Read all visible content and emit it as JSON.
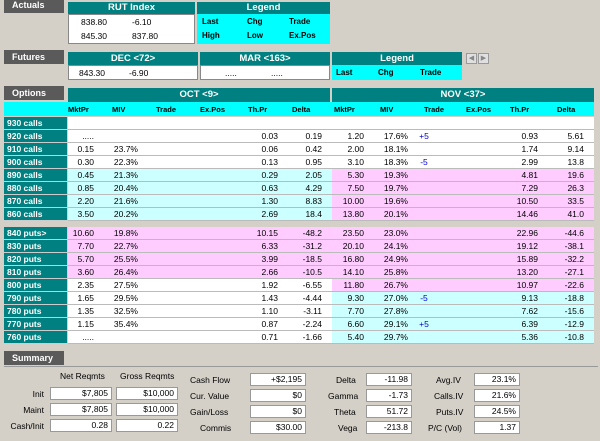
{
  "actuals": {
    "section_label": "Actuals",
    "index_title": "RUT Index",
    "row1": [
      "838.80",
      "-6.10"
    ],
    "row2": [
      "845.30",
      "837.80"
    ],
    "legend_title": "Legend",
    "legend_row1": [
      "Last",
      "Chg",
      "Trade"
    ],
    "legend_row2": [
      "High",
      "Low",
      "Ex.Pos"
    ]
  },
  "futures": {
    "section_label": "Futures",
    "dec_title": "DEC <72>",
    "dec_values": [
      "843.30",
      "-6.90"
    ],
    "mar_title": "MAR <163>",
    "mar_values": [
      ".....",
      "....."
    ],
    "legend_title": "Legend",
    "legend_row": [
      "Last",
      "Chg",
      "Trade"
    ],
    "nav_left": "◀",
    "nav_right": "▶"
  },
  "options": {
    "section_label": "Options",
    "oct_title": "OCT <9>",
    "nov_title": "NOV <37>",
    "columns": [
      "MktPr",
      "MIV",
      "Trade",
      "Ex.Pos",
      "Th.Pr",
      "Delta"
    ],
    "calls": [
      {
        "label": "930 calls",
        "oct": [
          "",
          "",
          "",
          "",
          "",
          ""
        ],
        "nov": [
          "",
          "",
          "",
          "",
          "",
          ""
        ]
      },
      {
        "label": "920 calls",
        "oct": [
          ".....",
          "",
          "",
          "",
          "0.03",
          "0.19"
        ],
        "nov": [
          "1.20",
          "17.6%",
          "+5",
          "",
          "0.93",
          "5.61"
        ]
      },
      {
        "label": "910 calls",
        "oct": [
          "0.15",
          "23.7%",
          "",
          "",
          "0.06",
          "0.42"
        ],
        "nov": [
          "2.00",
          "18.1%",
          "",
          "",
          "1.74",
          "9.14"
        ]
      },
      {
        "label": "900 calls",
        "oct": [
          "0.30",
          "22.3%",
          "",
          "",
          "0.13",
          "0.95"
        ],
        "nov": [
          "3.10",
          "18.3%",
          "-5",
          "",
          "2.99",
          "13.8"
        ]
      },
      {
        "label": "890 calls",
        "oct": [
          "0.45",
          "21.3%",
          "",
          "",
          "0.29",
          "2.05"
        ],
        "nov": [
          "5.30",
          "19.3%",
          "",
          "",
          "4.81",
          "19.6"
        ]
      },
      {
        "label": "880 calls",
        "oct": [
          "0.85",
          "20.4%",
          "",
          "",
          "0.63",
          "4.29"
        ],
        "nov": [
          "7.50",
          "19.7%",
          "",
          "",
          "7.29",
          "26.3"
        ]
      },
      {
        "label": "870 calls",
        "oct": [
          "2.20",
          "21.6%",
          "",
          "",
          "1.30",
          "8.83"
        ],
        "nov": [
          "10.00",
          "19.6%",
          "",
          "",
          "10.50",
          "33.5"
        ]
      },
      {
        "label": "860 calls",
        "oct": [
          "3.50",
          "20.2%",
          "",
          "",
          "2.69",
          "18.4"
        ],
        "nov": [
          "13.80",
          "20.1%",
          "",
          "",
          "14.46",
          "41.0"
        ]
      }
    ],
    "puts": [
      {
        "label": "840 puts>",
        "oct": [
          "10.60",
          "19.8%",
          "",
          "",
          "10.15",
          "-48.2"
        ],
        "nov": [
          "23.50",
          "23.0%",
          "",
          "",
          "22.96",
          "-44.6"
        ]
      },
      {
        "label": "830 puts",
        "oct": [
          "7.70",
          "22.7%",
          "",
          "",
          "6.33",
          "-31.2"
        ],
        "nov": [
          "20.10",
          "24.1%",
          "",
          "",
          "19.12",
          "-38.1"
        ]
      },
      {
        "label": "820 puts",
        "oct": [
          "5.70",
          "25.5%",
          "",
          "",
          "3.99",
          "-18.5"
        ],
        "nov": [
          "16.80",
          "24.9%",
          "",
          "",
          "15.89",
          "-32.2"
        ]
      },
      {
        "label": "810 puts",
        "oct": [
          "3.60",
          "26.4%",
          "",
          "",
          "2.66",
          "-10.5"
        ],
        "nov": [
          "14.10",
          "25.8%",
          "",
          "",
          "13.20",
          "-27.1"
        ]
      },
      {
        "label": "800 puts",
        "oct": [
          "2.35",
          "27.5%",
          "",
          "",
          "1.92",
          "-6.55"
        ],
        "nov": [
          "11.80",
          "26.7%",
          "",
          "",
          "10.97",
          "-22.6"
        ]
      },
      {
        "label": "790 puts",
        "oct": [
          "1.65",
          "29.5%",
          "",
          "",
          "1.43",
          "-4.44"
        ],
        "nov": [
          "9.30",
          "27.0%",
          "-5",
          "",
          "9.13",
          "-18.8"
        ]
      },
      {
        "label": "780 puts",
        "oct": [
          "1.35",
          "32.5%",
          "",
          "",
          "1.10",
          "-3.11"
        ],
        "nov": [
          "7.70",
          "27.8%",
          "",
          "",
          "7.62",
          "-15.6"
        ]
      },
      {
        "label": "770 puts",
        "oct": [
          "1.15",
          "35.4%",
          "",
          "",
          "0.87",
          "-2.24"
        ],
        "nov": [
          "6.60",
          "29.1%",
          "+5",
          "",
          "6.39",
          "-12.9"
        ]
      },
      {
        "label": "760 puts",
        "oct": [
          ".....",
          "",
          "",
          "",
          "0.71",
          "-1.66"
        ],
        "nov": [
          "5.40",
          "29.7%",
          "",
          "",
          "5.36",
          "-10.8"
        ]
      }
    ]
  },
  "summary": {
    "section_label": "Summary",
    "net_reqmts_label": "Net Reqmts",
    "gross_reqmts_label": "Gross Reqmts",
    "init_label": "Init",
    "maint_label": "Maint",
    "cash_init_label": "Cash/Init",
    "init_net": "$7,805",
    "init_gross": "$10,000",
    "maint_net": "$7,805",
    "maint_gross": "$10,000",
    "cash_init_net": "0.28",
    "cash_init_gross": "0.22",
    "cash_flow_label": "Cash Flow",
    "cash_flow": "+$2,195",
    "cur_value_label": "Cur. Value",
    "cur_value": "$0",
    "gain_loss_label": "Gain/Loss",
    "gain_loss": "$0",
    "commis_label": "Commis",
    "commis": "$30.00",
    "delta_label": "Delta",
    "delta": "-11.98",
    "gamma_label": "Gamma",
    "gamma": "-1.73",
    "theta_label": "Theta",
    "theta": "51.72",
    "vega_label": "Vega",
    "vega": "-213.8",
    "avg_iv_label": "Avg.IV",
    "avg_iv": "23.1%",
    "calls_iv_label": "Calls.IV",
    "calls_iv": "21.6%",
    "puts_iv_label": "Puts.IV",
    "puts_iv": "24.5%",
    "pc_vol_label": "P/C (Vol)",
    "pc_vol": "1.37"
  },
  "colors": {
    "teal": "#008080",
    "cyan": "#00ffff",
    "light_cyan": "#ccffff",
    "pink": "#ffccff",
    "panel": "#c9c9b4",
    "blue_trade": "#0000cc"
  }
}
